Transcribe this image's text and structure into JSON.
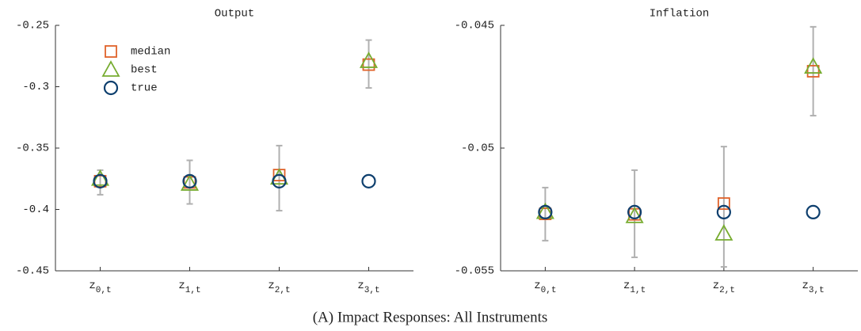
{
  "chart_data": [
    {
      "type": "errorbar-scatter",
      "title": "Output",
      "categories": [
        "z0,t",
        "z1,t",
        "z2,t",
        "z3,t"
      ],
      "ylim": [
        -0.45,
        -0.25
      ],
      "yticks": [
        -0.45,
        -0.4,
        -0.35,
        -0.3,
        -0.25
      ],
      "error_low": [
        -0.388,
        -0.3955,
        -0.401,
        -0.301
      ],
      "error_high": [
        -0.368,
        -0.36,
        -0.348,
        -0.262
      ],
      "error_color": "#b0b0b0",
      "legend": "upper left",
      "series": [
        {
          "name": "median",
          "color": "#e0622a",
          "marker": "square",
          "values": [
            -0.377,
            -0.378,
            -0.372,
            -0.282
          ]
        },
        {
          "name": "best",
          "color": "#77ac30",
          "marker": "triangle",
          "values": [
            -0.375,
            -0.379,
            -0.374,
            -0.279
          ]
        },
        {
          "name": "true",
          "color": "#0e3f6e",
          "marker": "circle",
          "values": [
            -0.377,
            -0.377,
            -0.377,
            -0.377
          ]
        }
      ]
    },
    {
      "type": "errorbar-scatter",
      "title": "Inflation",
      "categories": [
        "z0,t",
        "z1,t",
        "z2,t",
        "z3,t"
      ],
      "ylim": [
        -0.055,
        -0.045
      ],
      "yticks": [
        -0.055,
        -0.05,
        -0.045
      ],
      "error_low": [
        -0.05377,
        -0.05445,
        -0.05484,
        -0.04868
      ],
      "error_high": [
        -0.05161,
        -0.0509,
        -0.04994,
        -0.04506
      ],
      "error_color": "#b0b0b0",
      "series": [
        {
          "name": "median",
          "color": "#e0622a",
          "marker": "square",
          "values": [
            -0.05268,
            -0.0527,
            -0.05226,
            -0.04687
          ]
        },
        {
          "name": "best",
          "color": "#77ac30",
          "marker": "triangle",
          "values": [
            -0.0526,
            -0.05277,
            -0.05348,
            -0.04668
          ]
        },
        {
          "name": "true",
          "color": "#0e3f6e",
          "marker": "circle",
          "values": [
            -0.05261,
            -0.05261,
            -0.05261,
            -0.05261
          ]
        }
      ]
    }
  ],
  "caption": "(A) Impact Responses: All Instruments"
}
